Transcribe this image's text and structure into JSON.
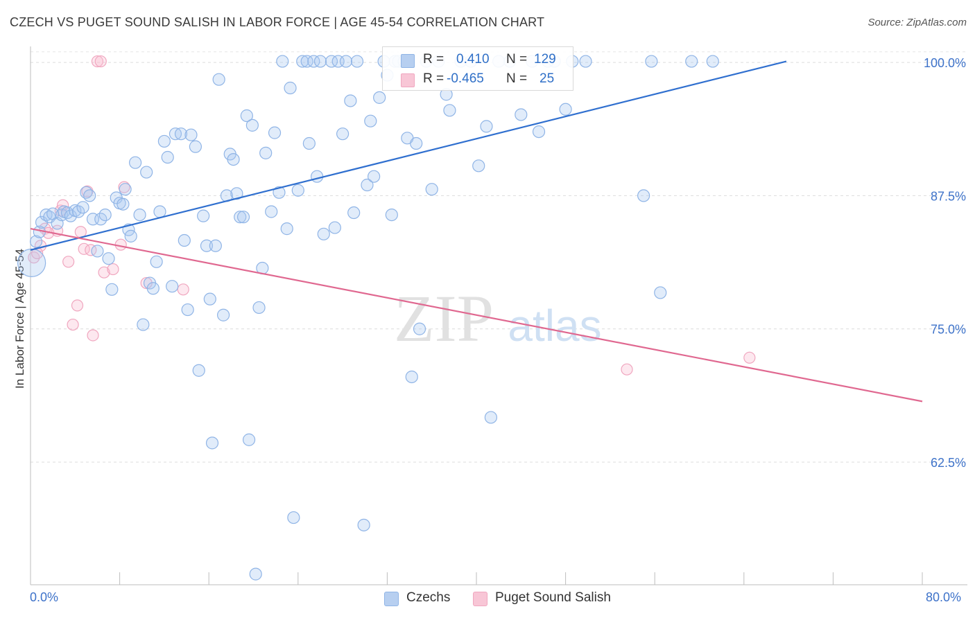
{
  "header": {
    "title": "CZECH VS PUGET SOUND SALISH IN LABOR FORCE | AGE 45-54 CORRELATION CHART",
    "source": "Source: ZipAtlas.com"
  },
  "legend": {
    "row1": {
      "r_label": "R =",
      "r_value": "0.410",
      "n_label": "N =",
      "n_value": "129"
    },
    "row2": {
      "r_label": "R =",
      "r_value": "-0.465",
      "n_label": "N =",
      "n_value": "25"
    }
  },
  "bottom_legend": {
    "series1": "Czechs",
    "series2": "Puget Sound Salish"
  },
  "watermark": {
    "zip": "ZIP",
    "atlas": "atlas"
  },
  "chart_data": {
    "type": "scatter",
    "title": "CZECH VS PUGET SOUND SALISH IN LABOR FORCE | AGE 45-54 CORRELATION CHART",
    "xlabel": "",
    "ylabel": "In Labor Force | Age 45-54",
    "xlim": [
      0,
      80
    ],
    "ylim": [
      51,
      101.5
    ],
    "x_tick_labels": {
      "left": "0.0%",
      "right": "80.0%"
    },
    "y_ticks": [
      {
        "value": 100,
        "label": "100.0%"
      },
      {
        "value": 87.5,
        "label": "87.5%"
      },
      {
        "value": 75,
        "label": "75.0%"
      },
      {
        "value": 62.5,
        "label": "62.5%"
      }
    ],
    "colors": {
      "czechs": "#8fb4e6",
      "czechs_line": "#2f6fcf",
      "salish": "#f0a6bf",
      "salish_line": "#e06890",
      "axis_text": "#3d72c9"
    },
    "series": [
      {
        "name": "Czechs",
        "trend": {
          "x0": 0,
          "y0": 82.4,
          "x1": 67.8,
          "y1": 100.1
        },
        "points": [
          [
            0.1,
            81.2
          ],
          [
            0.5,
            83.2
          ],
          [
            0.8,
            84.1
          ],
          [
            1.0,
            85.0
          ],
          [
            1.4,
            85.7
          ],
          [
            1.7,
            85.5
          ],
          [
            2.0,
            85.8
          ],
          [
            2.4,
            84.9
          ],
          [
            2.8,
            85.7
          ],
          [
            3.0,
            86.0
          ],
          [
            3.3,
            85.9
          ],
          [
            3.6,
            85.6
          ],
          [
            4.0,
            86.1
          ],
          [
            4.3,
            86.0
          ],
          [
            4.7,
            86.4
          ],
          [
            5.0,
            87.8
          ],
          [
            5.3,
            87.5
          ],
          [
            5.6,
            85.3
          ],
          [
            6.0,
            82.3
          ],
          [
            6.3,
            85.3
          ],
          [
            6.7,
            85.7
          ],
          [
            7.0,
            81.6
          ],
          [
            7.3,
            78.7
          ],
          [
            7.7,
            87.3
          ],
          [
            8.0,
            86.8
          ],
          [
            8.3,
            86.7
          ],
          [
            8.5,
            88.1
          ],
          [
            8.8,
            84.3
          ],
          [
            9.0,
            83.7
          ],
          [
            9.4,
            90.6
          ],
          [
            9.8,
            85.7
          ],
          [
            10.1,
            75.4
          ],
          [
            10.4,
            89.7
          ],
          [
            10.7,
            79.3
          ],
          [
            11.0,
            78.8
          ],
          [
            11.3,
            81.3
          ],
          [
            11.6,
            86.0
          ],
          [
            12.0,
            92.6
          ],
          [
            12.3,
            91.1
          ],
          [
            12.7,
            79.0
          ],
          [
            13.0,
            93.3
          ],
          [
            13.5,
            93.3
          ],
          [
            13.8,
            83.3
          ],
          [
            14.1,
            76.8
          ],
          [
            14.4,
            93.2
          ],
          [
            14.8,
            92.1
          ],
          [
            15.1,
            71.1
          ],
          [
            15.5,
            85.6
          ],
          [
            15.8,
            82.8
          ],
          [
            16.1,
            77.8
          ],
          [
            16.3,
            64.3
          ],
          [
            16.6,
            82.8
          ],
          [
            16.9,
            98.4
          ],
          [
            17.3,
            76.3
          ],
          [
            17.6,
            87.5
          ],
          [
            17.9,
            91.4
          ],
          [
            18.2,
            90.9
          ],
          [
            18.5,
            87.7
          ],
          [
            18.8,
            85.5
          ],
          [
            19.1,
            85.5
          ],
          [
            19.4,
            95.0
          ],
          [
            19.6,
            64.6
          ],
          [
            19.9,
            94.1
          ],
          [
            20.2,
            52.0
          ],
          [
            20.5,
            77.0
          ],
          [
            20.8,
            80.7
          ],
          [
            21.1,
            91.5
          ],
          [
            21.6,
            86.0
          ],
          [
            21.9,
            93.4
          ],
          [
            22.3,
            87.8
          ],
          [
            22.6,
            100.1
          ],
          [
            23.0,
            84.4
          ],
          [
            23.3,
            97.6
          ],
          [
            23.6,
            57.3
          ],
          [
            24.0,
            88.0
          ],
          [
            24.4,
            100.1
          ],
          [
            24.8,
            100.1
          ],
          [
            25.0,
            92.4
          ],
          [
            25.4,
            100.1
          ],
          [
            25.7,
            89.3
          ],
          [
            26.0,
            100.1
          ],
          [
            26.3,
            83.9
          ],
          [
            27.0,
            100.1
          ],
          [
            27.3,
            84.5
          ],
          [
            27.6,
            100.1
          ],
          [
            28.0,
            93.3
          ],
          [
            28.3,
            100.1
          ],
          [
            28.7,
            96.4
          ],
          [
            29.0,
            85.9
          ],
          [
            29.3,
            100.1
          ],
          [
            29.9,
            56.6
          ],
          [
            30.2,
            88.5
          ],
          [
            30.5,
            94.5
          ],
          [
            30.8,
            89.3
          ],
          [
            31.3,
            96.7
          ],
          [
            31.7,
            100.1
          ],
          [
            32.0,
            98.8
          ],
          [
            32.4,
            85.7
          ],
          [
            32.7,
            100.1
          ],
          [
            33.0,
            100.1
          ],
          [
            33.5,
            100.1
          ],
          [
            33.8,
            92.9
          ],
          [
            34.2,
            70.5
          ],
          [
            34.6,
            92.4
          ],
          [
            34.9,
            75.0
          ],
          [
            35.5,
            100.1
          ],
          [
            36.0,
            88.1
          ],
          [
            36.6,
            100.1
          ],
          [
            37.3,
            97.0
          ],
          [
            37.6,
            95.5
          ],
          [
            38.6,
            100.1
          ],
          [
            39.5,
            100.1
          ],
          [
            40.2,
            90.3
          ],
          [
            40.9,
            94.0
          ],
          [
            41.3,
            66.7
          ],
          [
            42.0,
            100.1
          ],
          [
            43.0,
            100.1
          ],
          [
            44.0,
            95.1
          ],
          [
            45.0,
            100.1
          ],
          [
            45.6,
            93.5
          ],
          [
            46.4,
            100.1
          ],
          [
            47.0,
            100.1
          ],
          [
            48.0,
            95.6
          ],
          [
            48.6,
            100.1
          ],
          [
            49.8,
            100.1
          ],
          [
            55.0,
            87.5
          ],
          [
            55.7,
            100.1
          ],
          [
            56.5,
            78.4
          ],
          [
            59.3,
            100.1
          ],
          [
            61.2,
            100.1
          ]
        ]
      },
      {
        "name": "Puget Sound Salish",
        "trend": {
          "x0": 0,
          "y0": 84.4,
          "x1": 80,
          "y1": 68.2
        },
        "points": [
          [
            0.3,
            81.7
          ],
          [
            0.6,
            82.1
          ],
          [
            0.9,
            82.8
          ],
          [
            1.3,
            84.4
          ],
          [
            1.6,
            84.0
          ],
          [
            2.4,
            84.2
          ],
          [
            2.7,
            86.1
          ],
          [
            2.9,
            86.6
          ],
          [
            3.4,
            81.3
          ],
          [
            3.8,
            75.4
          ],
          [
            4.2,
            77.2
          ],
          [
            4.5,
            84.1
          ],
          [
            4.8,
            82.5
          ],
          [
            5.1,
            87.9
          ],
          [
            5.4,
            82.4
          ],
          [
            5.6,
            74.4
          ],
          [
            6.0,
            100.1
          ],
          [
            6.3,
            100.1
          ],
          [
            6.6,
            80.3
          ],
          [
            7.4,
            80.6
          ],
          [
            8.1,
            82.9
          ],
          [
            8.4,
            88.3
          ],
          [
            10.4,
            79.3
          ],
          [
            13.7,
            78.7
          ],
          [
            53.5,
            71.2
          ],
          [
            64.5,
            72.3
          ]
        ]
      }
    ]
  }
}
